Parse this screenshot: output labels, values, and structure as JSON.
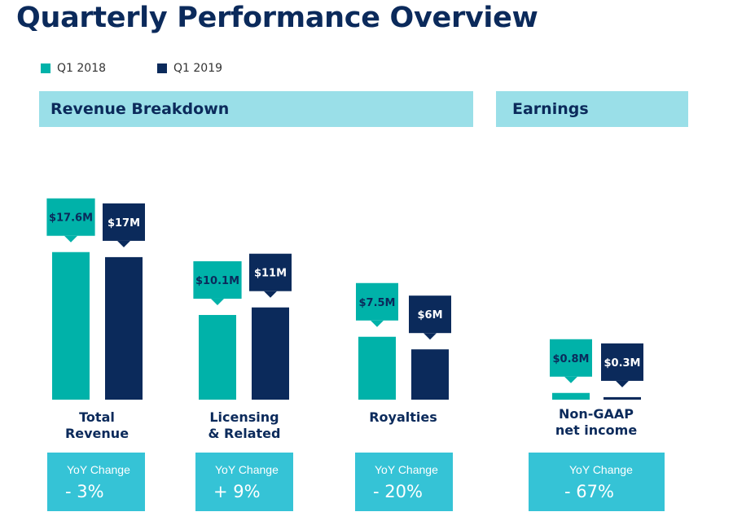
{
  "title": "Quarterly Performance Overview",
  "legend": [
    {
      "label": "Q1 2018",
      "color": "#00b2a9"
    },
    {
      "label": "Q1 2019",
      "color": "#0b2a5b"
    }
  ],
  "sections": {
    "revenue_header": "Revenue Breakdown",
    "earnings_header": "Earnings",
    "header_color": "#9adfe8"
  },
  "yoy": [
    {
      "label": "YoY Change",
      "value": "- 3%"
    },
    {
      "label": "YoY Change",
      "value": "+ 9%"
    },
    {
      "label": "YoY Change",
      "value": "- 20%"
    },
    {
      "label": "YoY Change",
      "value": "- 67%"
    }
  ],
  "yoy_box_color": "#35c3d6",
  "chart_data": {
    "type": "bar",
    "categories": [
      "Total\nRevenue",
      "Licensing\n& Related",
      "Royalties",
      "Non-GAAP\nnet income"
    ],
    "series": [
      {
        "name": "Q1 2018",
        "color": "#00b2a9",
        "values": [
          17.6,
          10.1,
          7.5,
          0.8
        ],
        "data_labels": [
          "$17.6M",
          "$10.1M",
          "$7.5M",
          "$0.8M"
        ]
      },
      {
        "name": "Q1 2019",
        "color": "#0b2a5b",
        "values": [
          17,
          11,
          6,
          0.3
        ],
        "data_labels": [
          "$17M",
          "$11M",
          "$6M",
          "$0.3M"
        ]
      }
    ],
    "unit": "$M",
    "grid": false,
    "legend_position": "top-left"
  }
}
